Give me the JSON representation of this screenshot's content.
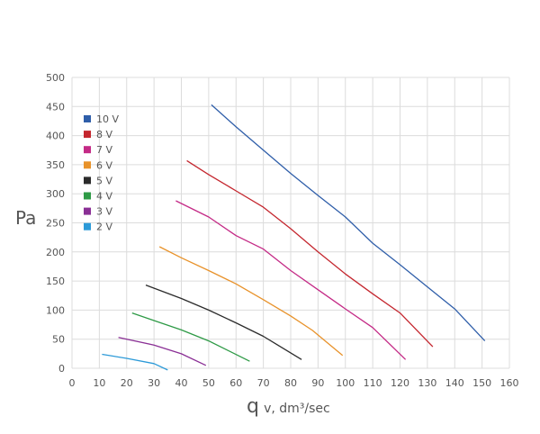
{
  "chart_data": {
    "type": "line",
    "ylabel": "Pa",
    "xlabel": {
      "symbol": "q",
      "rest": "v, dm³/sec"
    },
    "xlim": [
      0,
      160
    ],
    "ylim": [
      0,
      500
    ],
    "xticks": [
      "0",
      "10",
      "20",
      "30",
      "40",
      "50",
      "60",
      "70",
      "80",
      "90",
      "100",
      "110",
      "120",
      "130",
      "140",
      "150",
      "160"
    ],
    "yticks": [
      "0",
      "50",
      "100",
      "150",
      "200",
      "250",
      "300",
      "350",
      "400",
      "450",
      "500"
    ],
    "grid": true,
    "legend_position": "left-inside",
    "series": [
      {
        "name": "10 V",
        "color": "#2f5ea9",
        "points": [
          [
            51,
            453
          ],
          [
            60,
            415
          ],
          [
            70,
            375
          ],
          [
            80,
            335
          ],
          [
            90,
            297
          ],
          [
            100,
            260
          ],
          [
            110,
            215
          ],
          [
            120,
            178
          ],
          [
            130,
            140
          ],
          [
            140,
            102
          ],
          [
            151,
            47
          ]
        ]
      },
      {
        "name": "8 V",
        "color": "#c4262e",
        "points": [
          [
            42,
            357
          ],
          [
            50,
            333
          ],
          [
            60,
            305
          ],
          [
            70,
            277
          ],
          [
            80,
            240
          ],
          [
            90,
            200
          ],
          [
            100,
            162
          ],
          [
            110,
            128
          ],
          [
            120,
            95
          ],
          [
            132,
            37
          ]
        ]
      },
      {
        "name": "7 V",
        "color": "#c42a86",
        "points": [
          [
            38,
            288
          ],
          [
            50,
            260
          ],
          [
            60,
            228
          ],
          [
            70,
            205
          ],
          [
            80,
            168
          ],
          [
            90,
            135
          ],
          [
            100,
            102
          ],
          [
            110,
            70
          ],
          [
            122,
            15
          ]
        ]
      },
      {
        "name": "6 V",
        "color": "#e8922a",
        "points": [
          [
            32,
            209
          ],
          [
            40,
            190
          ],
          [
            50,
            168
          ],
          [
            60,
            145
          ],
          [
            70,
            118
          ],
          [
            80,
            90
          ],
          [
            88,
            65
          ],
          [
            99,
            22
          ]
        ]
      },
      {
        "name": "5 V",
        "color": "#2b2b2b",
        "points": [
          [
            27,
            143
          ],
          [
            40,
            120
          ],
          [
            50,
            100
          ],
          [
            60,
            78
          ],
          [
            70,
            55
          ],
          [
            84,
            15
          ]
        ]
      },
      {
        "name": "4 V",
        "color": "#2e9a46",
        "points": [
          [
            22,
            95
          ],
          [
            30,
            82
          ],
          [
            40,
            66
          ],
          [
            50,
            47
          ],
          [
            65,
            12
          ]
        ]
      },
      {
        "name": "3 V",
        "color": "#8a2f95",
        "points": [
          [
            17,
            53
          ],
          [
            30,
            40
          ],
          [
            40,
            25
          ],
          [
            49,
            5
          ]
        ]
      },
      {
        "name": "2 V",
        "color": "#2c9ad8",
        "points": [
          [
            11,
            24
          ],
          [
            20,
            17
          ],
          [
            30,
            8
          ],
          [
            35,
            -3
          ]
        ]
      }
    ]
  }
}
